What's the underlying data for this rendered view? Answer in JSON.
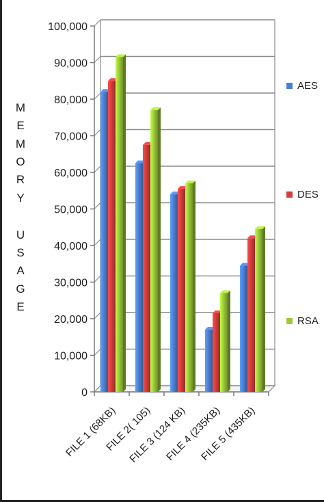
{
  "chart_data": {
    "type": "bar",
    "title": "",
    "xlabel": "",
    "ylabel": "MEMORY USAGE",
    "categories": [
      "FILE 1 (68KB)",
      "FILE 2( 105)",
      "FILE 3 (124 KB)",
      "FILE 4 (235KB)",
      "FILE 5 (435KB)"
    ],
    "series": [
      {
        "name": "AES",
        "values": [
          82000,
          62500,
          54000,
          17000,
          34500
        ]
      },
      {
        "name": "DES",
        "values": [
          85000,
          67500,
          55500,
          21500,
          42000
        ]
      },
      {
        "name": "RSA",
        "values": [
          91500,
          77000,
          57000,
          27000,
          44500
        ]
      }
    ],
    "ylim": [
      0,
      100000
    ],
    "yticks": [
      "0",
      "10,000",
      "20,000",
      "30,000",
      "40,000",
      "50,000",
      "60,000",
      "70,000",
      "80,000",
      "90,000",
      "100,000"
    ],
    "grid": true,
    "legend": "right",
    "colors": {
      "AES": "#4a7fd0",
      "DES": "#d23c3c",
      "RSA": "#9ccb3a",
      "grid": "#8a8a8a",
      "axis": "#7a7a7a"
    }
  }
}
